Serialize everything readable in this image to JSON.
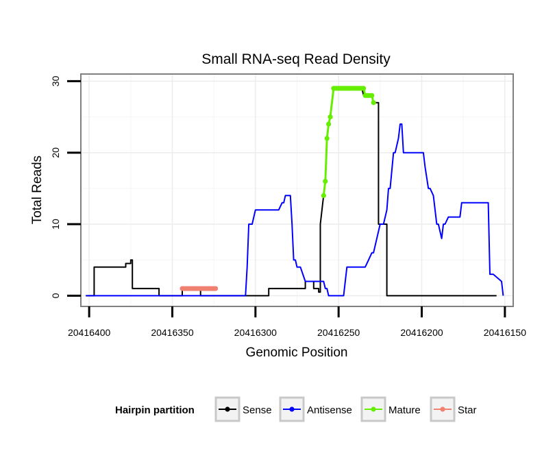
{
  "chart_data": {
    "type": "line",
    "title": "Small RNA-seq Read Density",
    "xlabel": "Genomic Position",
    "ylabel": "Total Reads",
    "xlim": [
      20416405,
      20416145
    ],
    "ylim": [
      -1.5,
      31
    ],
    "x_reversed": true,
    "x_ticks": [
      20416400,
      20416350,
      20416300,
      20416250,
      20416200,
      20416150
    ],
    "x_tick_labels": [
      "20416400",
      "20416350",
      "20416300",
      "20416250",
      "20416200",
      "20416150"
    ],
    "y_ticks": [
      0,
      10,
      20,
      30
    ],
    "y_tick_labels": [
      "0",
      "10",
      "20",
      "30"
    ],
    "grid": true,
    "legend": {
      "title": "Hairpin partition",
      "placement": "bottom",
      "entries": [
        "Sense",
        "Antisense",
        "Mature",
        "Star"
      ]
    },
    "series": [
      {
        "name": "Sense",
        "color": "#000000",
        "style": "line",
        "x": [
          20416402,
          20416397,
          20416397,
          20416378,
          20416378,
          20416375,
          20416375,
          20416374,
          20416374,
          20416358,
          20416358,
          20416344,
          20416344,
          20416333,
          20416333,
          20416310,
          20416310,
          20416292,
          20416292,
          20416270,
          20416270,
          20416265,
          20416265,
          20416262,
          20416262,
          20416261,
          20416261,
          20416259,
          20416258,
          20416257,
          20416256,
          20416255,
          20416254,
          20416253,
          20416252,
          20416251,
          20416250,
          20416248,
          20416246,
          20416244,
          20416242,
          20416240,
          20416238,
          20416236,
          20416235,
          20416234,
          20416232,
          20416230,
          20416229,
          20416228,
          20416227,
          20416226,
          20416226,
          20416221,
          20416221,
          20416155
        ],
        "y": [
          0,
          0,
          4,
          4,
          4.5,
          4.5,
          5,
          5,
          1,
          1,
          0,
          0,
          1,
          1,
          0,
          0,
          0,
          0,
          1,
          1,
          2,
          2,
          1,
          1,
          0.5,
          0.5,
          10,
          14,
          16,
          22,
          24,
          25,
          27,
          29,
          29,
          29,
          29,
          29,
          29,
          29,
          29,
          29,
          29,
          29,
          28,
          28,
          28,
          28,
          27,
          27,
          27,
          27,
          10,
          10,
          0,
          0
        ]
      },
      {
        "name": "Antisense",
        "color": "#0000ff",
        "style": "line",
        "x": [
          20416402,
          20416306,
          20416305,
          20416304,
          20416302,
          20416300,
          20416286,
          20416284,
          20416283,
          20416282,
          20416281,
          20416280,
          20416279,
          20416278,
          20416277,
          20416276,
          20416275,
          20416273,
          20416270,
          20416262,
          20416259,
          20416258,
          20416257,
          20416256,
          20416247,
          20416246,
          20416245,
          20416244,
          20416243,
          20416234,
          20416232,
          20416230,
          20416229,
          20416225,
          20416223,
          20416221,
          20416220,
          20416219,
          20416217,
          20416216,
          20416214,
          20416213,
          20416212,
          20416211,
          20416199,
          20416198,
          20416196,
          20416195,
          20416193,
          20416191,
          20416190,
          20416189,
          20416188,
          20416187,
          20416186,
          20416184,
          20416183,
          20416182,
          20416177,
          20416176,
          20416160,
          20416159,
          20416157,
          20416152,
          20416151
        ],
        "y": [
          0,
          0,
          4,
          10,
          10,
          12,
          12,
          13,
          13,
          14,
          14,
          14,
          14,
          10,
          5,
          5,
          4,
          4,
          2,
          2,
          2,
          1,
          1,
          0,
          0,
          2,
          4,
          4,
          4,
          4,
          5,
          6,
          6,
          10,
          10,
          12,
          15,
          15,
          20,
          20,
          22,
          24,
          24,
          20,
          20,
          18,
          15,
          15,
          14,
          10,
          10,
          9,
          8,
          10,
          10,
          11,
          11,
          11,
          11,
          13,
          13,
          3,
          3,
          2,
          0
        ]
      },
      {
        "name": "Mature",
        "color": "#66ee00",
        "style": "points",
        "x": [
          20416259,
          20416258,
          20416257,
          20416256,
          20416255,
          20416253,
          20416252,
          20416251,
          20416250,
          20416249,
          20416248,
          20416247,
          20416246,
          20416245,
          20416244,
          20416243,
          20416242,
          20416241,
          20416240,
          20416239,
          20416238,
          20416237,
          20416236,
          20416235,
          20416234,
          20416233,
          20416232,
          20416231,
          20416230,
          20416229
        ],
        "y": [
          14,
          16,
          22,
          24,
          25,
          29,
          29,
          29,
          29,
          29,
          29,
          29,
          29,
          29,
          29,
          29,
          29,
          29,
          29,
          29,
          29,
          29,
          29,
          29,
          28,
          28,
          28,
          28,
          28,
          27
        ]
      },
      {
        "name": "Star",
        "color": "#f08070",
        "style": "points",
        "x": [
          20416344,
          20416343,
          20416342,
          20416341,
          20416340,
          20416339,
          20416338,
          20416337,
          20416336,
          20416335,
          20416334,
          20416333,
          20416332,
          20416331,
          20416330,
          20416329,
          20416328,
          20416327,
          20416326,
          20416325,
          20416324
        ],
        "y": [
          1,
          1,
          1,
          1,
          1,
          1,
          1,
          1,
          1,
          1,
          1,
          1,
          1,
          1,
          1,
          1,
          1,
          1,
          1,
          1,
          1
        ]
      }
    ]
  }
}
